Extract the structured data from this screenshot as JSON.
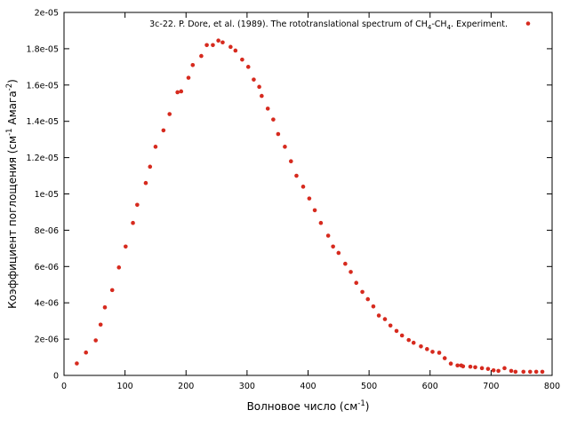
{
  "chart_data": {
    "type": "scatter",
    "xlabel": {
      "main": "Волновое число (см",
      "sup": "-1",
      "end": ")"
    },
    "ylabel": {
      "main": "Коэффициент поглощения (см",
      "sup1": "-1",
      "mid": " Амага",
      "sup2": "-2",
      "end": ")"
    },
    "legend": {
      "parts": [
        {
          "text": "3c-22. P. Dore, et al. (1989). The rototranslational spectrum of CH",
          "style": "normal"
        },
        {
          "text": "4",
          "style": "sub"
        },
        {
          "text": "-CH",
          "style": "normal"
        },
        {
          "text": "4",
          "style": "sub"
        },
        {
          "text": ". Experiment.",
          "style": "normal"
        }
      ],
      "placement": "top-right"
    },
    "xlim": [
      0,
      800
    ],
    "ylim": [
      0,
      2e-05
    ],
    "xticks": [
      0,
      100,
      200,
      300,
      400,
      500,
      600,
      700,
      800
    ],
    "xtick_labels": [
      "0",
      "100",
      "200",
      "300",
      "400",
      "500",
      "600",
      "700",
      "800"
    ],
    "yticks": [
      0,
      2e-06,
      4e-06,
      6e-06,
      8e-06,
      1e-05,
      1.2e-05,
      1.4e-05,
      1.6e-05,
      1.8e-05,
      2e-05
    ],
    "ytick_labels": [
      "0",
      "2e-06",
      "4e-06",
      "6e-06",
      "8e-06",
      "1e-05",
      "1.2e-05",
      "1.4e-05",
      "1.6e-05",
      "1.8e-05",
      "2e-05"
    ],
    "grid": false,
    "marker_color": "#d62a1e",
    "series": [
      {
        "x": [
          21,
          36,
          52,
          60,
          67,
          79,
          90,
          101,
          113,
          120,
          134,
          141,
          150,
          163,
          173,
          186,
          192,
          204,
          211,
          225,
          234,
          244,
          253,
          260,
          273,
          281,
          292,
          302,
          311,
          320,
          324,
          334,
          343,
          351,
          362,
          372,
          381,
          392,
          402,
          411,
          421,
          433,
          441,
          450,
          461,
          470,
          479,
          489,
          498,
          507,
          516,
          526,
          535,
          545,
          554,
          565,
          573,
          585,
          595,
          604,
          615,
          624,
          634,
          645,
          651,
          654,
          666,
          674,
          685,
          695,
          704,
          712,
          722,
          733,
          740,
          753,
          764,
          774,
          784
        ],
        "y": [
          6.6e-07,
          1.26e-06,
          1.93e-06,
          2.8e-06,
          3.75e-06,
          4.7e-06,
          5.95e-06,
          7.1e-06,
          8.4e-06,
          9.4e-06,
          1.06e-05,
          1.15e-05,
          1.26e-05,
          1.35e-05,
          1.44e-05,
          1.56e-05,
          1.565e-05,
          1.64e-05,
          1.71e-05,
          1.76e-05,
          1.82e-05,
          1.82e-05,
          1.845e-05,
          1.835e-05,
          1.81e-05,
          1.79e-05,
          1.74e-05,
          1.7e-05,
          1.63e-05,
          1.59e-05,
          1.54e-05,
          1.47e-05,
          1.41e-05,
          1.33e-05,
          1.26e-05,
          1.18e-05,
          1.1e-05,
          1.04e-05,
          9.75e-06,
          9.1e-06,
          8.4e-06,
          7.7e-06,
          7.1e-06,
          6.75e-06,
          6.15e-06,
          5.7e-06,
          5.1e-06,
          4.6e-06,
          4.2e-06,
          3.8e-06,
          3.3e-06,
          3.1e-06,
          2.75e-06,
          2.45e-06,
          2.2e-06,
          1.95e-06,
          1.8e-06,
          1.6e-06,
          1.45e-06,
          1.3e-06,
          1.25e-06,
          9.5e-07,
          6.5e-07,
          5.5e-07,
          5.5e-07,
          5e-07,
          4.8e-07,
          4.5e-07,
          4e-07,
          3.6e-07,
          2.8e-07,
          2.5e-07,
          4e-07,
          2.5e-07,
          2e-07,
          2e-07,
          2e-07,
          2e-07,
          2e-07
        ]
      }
    ]
  }
}
